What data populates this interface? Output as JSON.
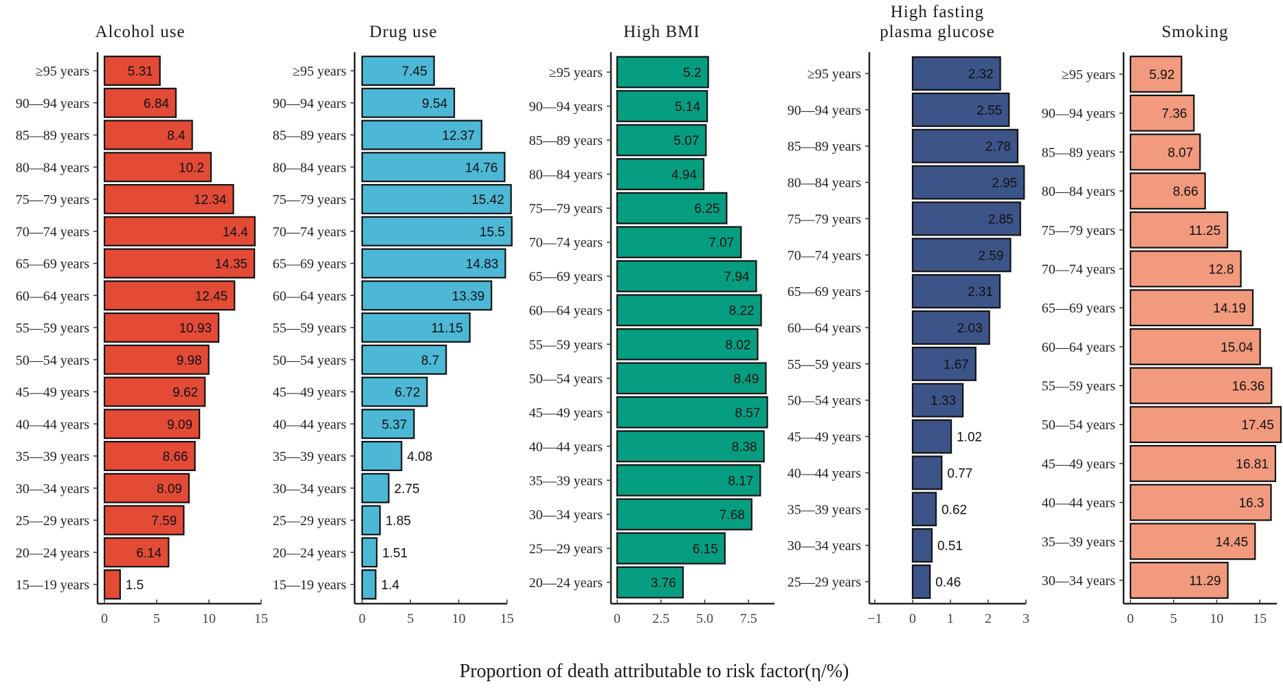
{
  "chart_data": {
    "type": "bar",
    "orientation": "horizontal",
    "xlabel": "Proportion of death attributable to risk factor(η/%)",
    "panels": [
      {
        "title": [
          "Alcohol use"
        ],
        "color": "#E34B36",
        "categories": [
          "≥95 years",
          "90—94 years",
          "85—89 years",
          "80—84 years",
          "75—79 years",
          "70—74 years",
          "65—69 years",
          "60—64 years",
          "55—59 years",
          "50—54 years",
          "45—49 years",
          "40—44 years",
          "35—39 years",
          "30—34 years",
          "25—29 years",
          "20—24 years",
          "15—19 years"
        ],
        "values": [
          5.31,
          6.84,
          8.4,
          10.2,
          12.34,
          14.4,
          14.35,
          12.45,
          10.93,
          9.98,
          9.62,
          9.09,
          8.66,
          8.09,
          7.59,
          6.14,
          1.5
        ],
        "value_labels": [
          "5.31",
          "6.84",
          "8.4",
          "10.2",
          "12.34",
          "14.4",
          "14.35",
          "12.45",
          "10.93",
          "9.98",
          "9.62",
          "9.09",
          "8.66",
          "8.09",
          "7.59",
          "6.14",
          "1.5"
        ],
        "xlim": [
          -0.6,
          15
        ],
        "xticks": [
          0,
          5,
          10,
          15
        ],
        "xtick_labels": [
          "0",
          "5",
          "10",
          "15"
        ]
      },
      {
        "title": [
          "Drug use"
        ],
        "color": "#4DB8D6",
        "categories": [
          "≥95 years",
          "90—94 years",
          "85—89 years",
          "80—84 years",
          "75—79 years",
          "70—74 years",
          "65—69 years",
          "60—64 years",
          "55—59 years",
          "50—54 years",
          "45—49 years",
          "40—44 years",
          "35—39 years",
          "30—34 years",
          "25—29 years",
          "20—24 years",
          "15—19 years"
        ],
        "values": [
          7.45,
          9.54,
          12.37,
          14.76,
          15.42,
          15.5,
          14.83,
          13.39,
          11.15,
          8.7,
          6.72,
          5.37,
          4.08,
          2.75,
          1.85,
          1.51,
          1.4
        ],
        "value_labels": [
          "7.45",
          "9.54",
          "12.37",
          "14.76",
          "15.42",
          "15.5",
          "14.83",
          "13.39",
          "11.15",
          "8.7",
          "6.72",
          "5.37",
          "4.08",
          "2.75",
          "1.85",
          "1.51",
          "1.4"
        ],
        "xlim": [
          -0.75,
          15
        ],
        "xticks": [
          0,
          5,
          10,
          15
        ],
        "xtick_labels": [
          "0",
          "5",
          "10",
          "15"
        ]
      },
      {
        "title": [
          "High BMI"
        ],
        "color": "#069E80",
        "categories": [
          "≥95 years",
          "90—94 years",
          "85—89 years",
          "80—84 years",
          "75—79 years",
          "70—74 years",
          "65—69 years",
          "60—64 years",
          "55—59 years",
          "50—54 years",
          "45—49 years",
          "40—44 years",
          "35—39 years",
          "30—34 years",
          "25—29 years",
          "20—24 years"
        ],
        "values": [
          5.2,
          5.14,
          5.07,
          4.94,
          6.25,
          7.07,
          7.94,
          8.22,
          8.02,
          8.49,
          8.57,
          8.38,
          8.17,
          7.68,
          6.15,
          3.76
        ],
        "value_labels": [
          "5.2",
          "5.14",
          "5.07",
          "4.94",
          "6.25",
          "7.07",
          "7.94",
          "8.22",
          "8.02",
          "8.49",
          "8.57",
          "8.38",
          "8.17",
          "7.68",
          "6.15",
          "3.76"
        ],
        "xlim": [
          -0.35,
          9.0
        ],
        "xticks": [
          0,
          2.5,
          5.0,
          7.5
        ],
        "xtick_labels": [
          "0",
          "2.5",
          "5.0",
          "7.5"
        ]
      },
      {
        "title": [
          "High fasting",
          "plasma glucose"
        ],
        "color": "#3C5488",
        "categories": [
          "≥95 years",
          "90—94 years",
          "85—89 years",
          "80—84 years",
          "75—79 years",
          "70—74 years",
          "65—69 years",
          "60—64 years",
          "55—59 years",
          "50—54 years",
          "45—49 years",
          "40—44 years",
          "35—39 years",
          "30—34 years",
          "25—29 years"
        ],
        "values": [
          2.32,
          2.55,
          2.78,
          2.95,
          2.85,
          2.59,
          2.31,
          2.03,
          1.67,
          1.33,
          1.02,
          0.77,
          0.62,
          0.51,
          0.46
        ],
        "value_labels": [
          "2.32",
          "2.55",
          "2.78",
          "2.95",
          "2.85",
          "2.59",
          "2.31",
          "2.03",
          "1.67",
          "1.33",
          "1.02",
          "0.77",
          "0.62",
          "0.51",
          "0.46"
        ],
        "xlim": [
          -1.15,
          3.0
        ],
        "xticks": [
          -1,
          0,
          1,
          2,
          3
        ],
        "xtick_labels": [
          "−1",
          "0",
          "1",
          "2",
          "3"
        ]
      },
      {
        "title": [
          "Smoking"
        ],
        "color": "#F29A7E",
        "categories": [
          "≥95 years",
          "90—94 years",
          "85—89 years",
          "80—84 years",
          "75—79 years",
          "70—74 years",
          "65—69 years",
          "60—64 years",
          "55—59 years",
          "50—54 years",
          "45—49 years",
          "40—44 years",
          "35—39 years",
          "30—34 years"
        ],
        "values": [
          5.92,
          7.36,
          8.07,
          8.66,
          11.25,
          12.8,
          14.19,
          15.04,
          16.36,
          17.45,
          16.81,
          16.3,
          14.45,
          11.29
        ],
        "value_labels": [
          "5.92",
          "7.36",
          "8.07",
          "8.66",
          "11.25",
          "12.8",
          "14.19",
          "15.04",
          "16.36",
          "17.45",
          "16.81",
          "16.3",
          "14.45",
          "11.29"
        ],
        "xlim": [
          -0.8,
          17.8
        ],
        "xticks": [
          0,
          5,
          10,
          15
        ],
        "xtick_labels": [
          "0",
          "5",
          "10",
          "15"
        ]
      }
    ]
  }
}
